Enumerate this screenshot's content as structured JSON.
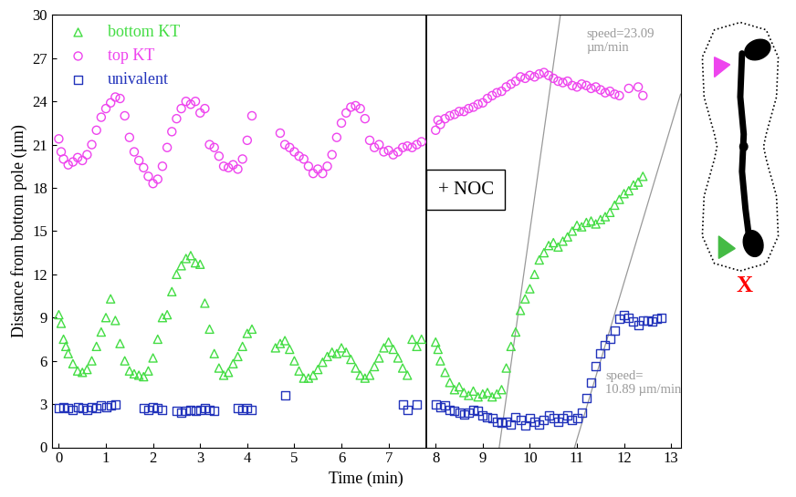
{
  "chart_data": {
    "type": "scatter",
    "x_label": "Time (min)",
    "y_label": "Distance from bottom pole (µm)",
    "xlim": [
      -0.15,
      13.2
    ],
    "ylim": [
      0,
      30
    ],
    "xticks": [
      0,
      1,
      2,
      3,
      4,
      5,
      6,
      7,
      8,
      9,
      10,
      11,
      12,
      13
    ],
    "yticks": [
      0,
      3,
      6,
      9,
      12,
      15,
      18,
      21,
      24,
      27,
      30
    ],
    "legend": "upper left",
    "treatment": {
      "label": "+ NOC",
      "time": 7.8
    },
    "fit_lines": [
      {
        "label": "speed=23.09\nµm/min",
        "speed": 23.09,
        "x_intercept": 9.35
      },
      {
        "label": "speed=\n10.89 µm/min",
        "speed": 10.89,
        "x_intercept": 10.95
      }
    ],
    "cartoon": {
      "label": "X"
    },
    "series": [
      {
        "name": "bottom KT",
        "color": "#44dd44",
        "marker": "triangle",
        "x": [
          0.0,
          0.05,
          0.1,
          0.15,
          0.2,
          0.3,
          0.4,
          0.5,
          0.6,
          0.7,
          0.8,
          0.9,
          1.0,
          1.1,
          1.2,
          1.3,
          1.4,
          1.5,
          1.6,
          1.7,
          1.8,
          1.9,
          2.0,
          2.1,
          2.2,
          2.3,
          2.4,
          2.5,
          2.6,
          2.7,
          2.8,
          2.9,
          3.0,
          3.1,
          3.2,
          3.3,
          3.4,
          3.5,
          3.6,
          3.7,
          3.8,
          3.9,
          4.0,
          4.1,
          4.6,
          4.7,
          4.8,
          4.9,
          5.0,
          5.1,
          5.2,
          5.3,
          5.4,
          5.5,
          5.6,
          5.7,
          5.8,
          5.9,
          6.0,
          6.1,
          6.2,
          6.3,
          6.4,
          6.5,
          6.6,
          6.7,
          6.8,
          6.9,
          7.0,
          7.1,
          7.2,
          7.3,
          7.4,
          7.5,
          7.6,
          7.7,
          8.0,
          8.05,
          8.1,
          8.2,
          8.3,
          8.4,
          8.5,
          8.6,
          8.7,
          8.8,
          8.9,
          9.0,
          9.1,
          9.2,
          9.3,
          9.4,
          9.5,
          9.6,
          9.7,
          9.8,
          9.9,
          10.0,
          10.1,
          10.2,
          10.3,
          10.4,
          10.5,
          10.6,
          10.7,
          10.8,
          10.9,
          11.0,
          11.1,
          11.2,
          11.3,
          11.4,
          11.5,
          11.6,
          11.7,
          11.8,
          11.9,
          12.0,
          12.1,
          12.2,
          12.3,
          12.4
        ],
        "values": [
          9.2,
          8.6,
          7.5,
          7.0,
          6.5,
          5.8,
          5.3,
          5.2,
          5.4,
          6.0,
          7.0,
          8.0,
          9.0,
          10.3,
          8.8,
          7.2,
          6.0,
          5.3,
          5.1,
          5.0,
          4.9,
          5.3,
          6.2,
          7.5,
          9.0,
          9.2,
          10.8,
          12.0,
          12.6,
          13.1,
          13.3,
          12.8,
          12.7,
          10.0,
          8.2,
          6.5,
          5.5,
          5.0,
          5.2,
          5.8,
          6.3,
          7.0,
          7.9,
          8.2,
          6.9,
          7.2,
          7.4,
          6.8,
          6.0,
          5.3,
          4.8,
          4.8,
          5.0,
          5.4,
          5.9,
          6.3,
          6.6,
          6.5,
          6.9,
          6.6,
          6.1,
          5.5,
          5.0,
          4.8,
          5.0,
          5.6,
          6.2,
          6.9,
          7.3,
          6.8,
          6.2,
          5.5,
          5.0,
          7.5,
          7.0,
          7.5,
          7.3,
          6.8,
          6.0,
          5.2,
          4.5,
          4.0,
          4.2,
          3.8,
          3.6,
          3.9,
          3.5,
          3.7,
          3.8,
          3.5,
          3.7,
          4.0,
          5.5,
          7.0,
          8.0,
          9.5,
          10.3,
          11.0,
          12.0,
          13.0,
          13.5,
          14.0,
          14.2,
          13.9,
          14.3,
          14.6,
          15.0,
          15.4,
          15.3,
          15.6,
          15.7,
          15.5,
          15.8,
          16.0,
          16.3,
          16.8,
          17.2,
          17.6,
          17.8,
          18.2,
          18.4,
          18.8
        ]
      },
      {
        "name": "top KT",
        "color": "#ee44ee",
        "marker": "circle",
        "x": [
          0.0,
          0.05,
          0.1,
          0.2,
          0.3,
          0.4,
          0.5,
          0.6,
          0.7,
          0.8,
          0.9,
          1.0,
          1.1,
          1.2,
          1.3,
          1.4,
          1.5,
          1.6,
          1.7,
          1.8,
          1.9,
          2.0,
          2.1,
          2.2,
          2.3,
          2.4,
          2.5,
          2.6,
          2.7,
          2.8,
          2.9,
          3.0,
          3.1,
          3.2,
          3.3,
          3.4,
          3.5,
          3.6,
          3.7,
          3.8,
          3.9,
          4.0,
          4.1,
          4.7,
          4.8,
          4.9,
          5.0,
          5.1,
          5.2,
          5.3,
          5.4,
          5.5,
          5.6,
          5.7,
          5.8,
          5.9,
          6.0,
          6.1,
          6.2,
          6.3,
          6.4,
          6.5,
          6.6,
          6.7,
          6.8,
          6.9,
          7.0,
          7.1,
          7.2,
          7.3,
          7.4,
          7.5,
          7.6,
          7.7,
          8.0,
          8.05,
          8.1,
          8.2,
          8.3,
          8.4,
          8.5,
          8.6,
          8.7,
          8.8,
          8.9,
          9.0,
          9.1,
          9.2,
          9.3,
          9.4,
          9.5,
          9.6,
          9.7,
          9.8,
          9.9,
          10.0,
          10.1,
          10.2,
          10.3,
          10.4,
          10.5,
          10.6,
          10.7,
          10.8,
          10.9,
          11.0,
          11.1,
          11.2,
          11.3,
          11.4,
          11.5,
          11.6,
          11.7,
          11.8,
          11.9,
          12.1,
          12.3,
          12.4
        ],
        "values": [
          21.4,
          20.5,
          20.0,
          19.6,
          19.8,
          20.1,
          19.9,
          20.3,
          21.0,
          22.0,
          22.9,
          23.5,
          23.9,
          24.3,
          24.2,
          23.0,
          21.5,
          20.5,
          19.9,
          19.4,
          18.8,
          18.3,
          18.6,
          19.5,
          20.8,
          21.9,
          22.8,
          23.5,
          24.0,
          23.8,
          24.0,
          23.2,
          23.5,
          21.0,
          20.8,
          20.2,
          19.5,
          19.4,
          19.6,
          19.3,
          20.0,
          21.3,
          23.0,
          21.8,
          21.0,
          20.8,
          20.5,
          20.2,
          20.0,
          19.5,
          19.0,
          19.3,
          19.0,
          19.5,
          20.3,
          21.5,
          22.5,
          23.2,
          23.6,
          23.7,
          23.5,
          22.8,
          21.3,
          20.8,
          21.0,
          20.5,
          20.6,
          20.3,
          20.5,
          20.8,
          20.9,
          20.8,
          21.0,
          21.2,
          22.0,
          22.7,
          22.4,
          22.8,
          23.0,
          23.1,
          23.3,
          23.3,
          23.5,
          23.6,
          23.8,
          23.9,
          24.2,
          24.4,
          24.6,
          24.7,
          25.0,
          25.2,
          25.4,
          25.7,
          25.6,
          25.8,
          25.7,
          25.9,
          26.0,
          25.8,
          25.6,
          25.4,
          25.3,
          25.4,
          25.1,
          25.0,
          25.2,
          25.1,
          24.9,
          25.0,
          24.8,
          24.6,
          24.7,
          24.5,
          24.4,
          24.9,
          25.0,
          24.4
        ]
      },
      {
        "name": "univalent",
        "color": "#2233bb",
        "marker": "square",
        "x": [
          0.0,
          0.1,
          0.2,
          0.3,
          0.4,
          0.5,
          0.6,
          0.7,
          0.8,
          0.9,
          1.0,
          1.1,
          1.2,
          1.8,
          1.9,
          2.0,
          2.1,
          2.2,
          2.5,
          2.6,
          2.7,
          2.8,
          2.9,
          3.0,
          3.1,
          3.2,
          3.3,
          3.8,
          3.9,
          4.0,
          4.1,
          4.8,
          7.3,
          7.4,
          7.6,
          8.0,
          8.1,
          8.2,
          8.3,
          8.4,
          8.5,
          8.6,
          8.7,
          8.8,
          8.9,
          9.0,
          9.1,
          9.2,
          9.3,
          9.4,
          9.5,
          9.6,
          9.7,
          9.8,
          9.9,
          10.0,
          10.1,
          10.2,
          10.3,
          10.4,
          10.5,
          10.6,
          10.7,
          10.8,
          10.9,
          11.0,
          11.1,
          11.2,
          11.3,
          11.4,
          11.5,
          11.6,
          11.7,
          11.8,
          11.9,
          12.0,
          12.1,
          12.2,
          12.3,
          12.4,
          12.5,
          12.6,
          12.7,
          12.8
        ],
        "values": [
          2.7,
          2.8,
          2.7,
          2.6,
          2.8,
          2.7,
          2.6,
          2.8,
          2.7,
          2.9,
          2.8,
          2.9,
          3.0,
          2.7,
          2.6,
          2.8,
          2.7,
          2.6,
          2.5,
          2.4,
          2.5,
          2.6,
          2.5,
          2.6,
          2.7,
          2.6,
          2.5,
          2.7,
          2.6,
          2.7,
          2.6,
          3.6,
          3.0,
          2.6,
          3.0,
          3.0,
          2.8,
          2.9,
          2.6,
          2.5,
          2.4,
          2.3,
          2.4,
          2.6,
          2.5,
          2.2,
          2.1,
          2.0,
          1.8,
          1.7,
          1.8,
          1.6,
          2.1,
          1.9,
          1.5,
          2.0,
          1.8,
          1.6,
          1.9,
          2.2,
          2.0,
          1.8,
          2.0,
          2.2,
          1.9,
          2.0,
          2.4,
          3.4,
          4.5,
          5.6,
          6.5,
          7.1,
          7.5,
          8.1,
          8.9,
          9.2,
          9.0,
          8.7,
          8.5,
          8.8,
          8.8,
          8.7,
          8.9,
          9.0
        ]
      }
    ]
  }
}
